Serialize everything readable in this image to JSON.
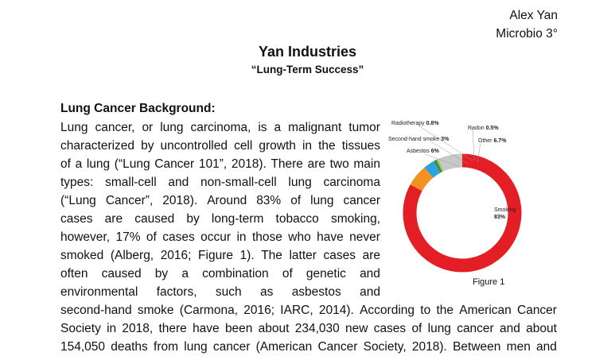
{
  "author": {
    "name": "Alex Yan",
    "class": "Microbio 3°"
  },
  "title": "Yan Industries",
  "subtitle": "“Lung-Term Success”",
  "section_heading": "Lung Cancer Background:",
  "paragraph_lines": [
    [
      "Lung",
      "cancer,",
      "or",
      "lung",
      "carcinoma,",
      "is",
      "a",
      "malignant",
      "tumor"
    ],
    [
      "characterized",
      "by",
      "uncontrolled",
      "cell",
      "growth",
      "in",
      "the",
      "tissues"
    ],
    [
      "of",
      "a",
      "lung",
      "(“Lung",
      "Cancer",
      "101”,",
      "2018).",
      "There",
      "are",
      "two",
      "main"
    ],
    [
      "types:",
      "small-cell",
      "and",
      "non-small-cell",
      "lung",
      "carcinoma"
    ],
    [
      "(“Lung",
      "Cancer”,",
      "2018).",
      "Around",
      "83%",
      "of",
      "lung",
      "cancer"
    ],
    [
      "cases",
      "are",
      "caused",
      "by",
      "long-term",
      "tobacco",
      "smoking,"
    ],
    [
      "however,",
      "17%",
      "of",
      "cases",
      "occur",
      "in",
      "those",
      "who",
      "have",
      "never"
    ],
    [
      "smoked",
      "(Alberg,",
      "2016;",
      "Figure",
      "1).",
      "The",
      "latter",
      "cases",
      "are"
    ],
    [
      "often",
      "caused",
      "by",
      "a",
      "combination",
      "of",
      "genetic",
      "and"
    ],
    [
      "environmental",
      "factors,",
      "such",
      "as",
      "asbestos",
      "and"
    ],
    [
      "second-hand",
      "smoke",
      "(Carmona,",
      "2016;",
      "IARC,",
      "2014).",
      "According",
      "to",
      "the",
      "American",
      "Cancer"
    ],
    [
      "Society",
      "in",
      "2018,",
      "there",
      "have",
      "been",
      "about",
      "234,030",
      "new",
      "cases",
      "of",
      "lung",
      "cancer",
      "and",
      "about"
    ],
    [
      "154,050",
      "deaths",
      "from",
      "lung",
      "cancer",
      "(American",
      "Cancer",
      "Society,",
      "2018).",
      "Between",
      "men",
      "and"
    ]
  ],
  "figure_caption": "Figure 1",
  "chart_data": {
    "type": "pie",
    "style": "donut",
    "categories": [
      "Smoking",
      "Asbestos",
      "Second-hand smoke",
      "Radiotherapy",
      "Radon",
      "Other"
    ],
    "values": [
      83,
      6,
      3,
      0.8,
      0.5,
      6.7
    ],
    "value_labels": [
      "83%",
      "6%",
      "3%",
      "0.8%",
      "0.5%",
      "6.7%"
    ],
    "colors": [
      "#e31e24",
      "#f39220",
      "#2aa3df",
      "#3a8f3a",
      "#a0c25a",
      "#c8c8c8"
    ]
  }
}
